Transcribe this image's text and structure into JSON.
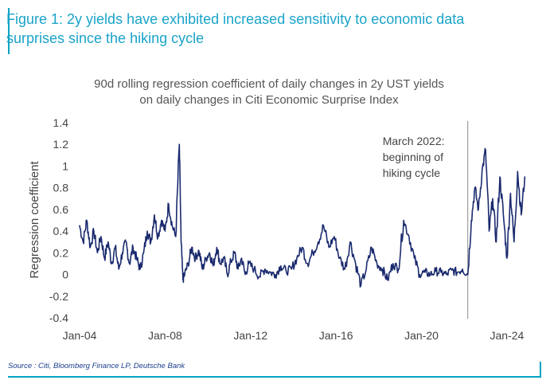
{
  "figure": {
    "title": "Figure 1: 2y yields have exhibited increased sensitivity to economic data surprises since the hiking cycle",
    "source": "Source : Citi, Bloomberg Finance LP, Deutsche Bank"
  },
  "colors": {
    "accent": "#1aa3c9",
    "series_line": "#1a2a6e",
    "source_text": "#1a3c8c"
  },
  "chart_data": {
    "type": "line",
    "title": "90d rolling regression coefficient of daily changes in 2y UST yields on daily changes in Citi Economic Surprise Index",
    "title_lines": [
      "90d rolling regression coefficient of daily changes in 2y UST yields",
      "on daily changes in Citi Economic Surprise Index"
    ],
    "xlabel": "",
    "ylabel": "Regression coefficient",
    "xlim": [
      "2004-01",
      "2025-02"
    ],
    "ylim": [
      -0.4,
      1.4
    ],
    "y_ticks": [
      "1.4",
      "1.2",
      "1",
      "0.8",
      "0.6",
      "0.4",
      "0.2",
      "0",
      "-0.2",
      "-0.4"
    ],
    "x_ticks": [
      "Jan-04",
      "Jan-08",
      "Jan-12",
      "Jan-16",
      "Jan-20",
      "Jan-24"
    ],
    "grid": false,
    "annotation": {
      "lines": [
        "March 2022:",
        "beginning of",
        "hiking cycle"
      ],
      "date": "2022-03"
    },
    "series": [
      {
        "x": [
          "2004-01",
          "2004-03",
          "2004-05",
          "2004-07",
          "2004-09",
          "2004-11",
          "2005-01",
          "2005-03",
          "2005-05",
          "2005-07",
          "2005-09",
          "2005-11",
          "2006-01",
          "2006-03",
          "2006-05",
          "2006-07",
          "2006-09",
          "2006-11",
          "2007-01",
          "2007-03",
          "2007-05",
          "2007-07",
          "2007-09",
          "2007-11",
          "2008-01",
          "2008-03",
          "2008-05",
          "2008-07",
          "2008-09",
          "2008-10",
          "2008-11",
          "2008-12",
          "2009-02",
          "2009-04",
          "2009-06",
          "2009-08",
          "2009-10",
          "2009-12",
          "2010-02",
          "2010-04",
          "2010-06",
          "2010-08",
          "2010-10",
          "2010-12",
          "2011-02",
          "2011-04",
          "2011-06",
          "2011-08",
          "2011-10",
          "2011-12",
          "2012-03",
          "2012-06",
          "2012-09",
          "2012-12",
          "2013-03",
          "2013-06",
          "2013-09",
          "2013-12",
          "2014-03",
          "2014-06",
          "2014-09",
          "2014-12",
          "2015-03",
          "2015-06",
          "2015-09",
          "2015-12",
          "2016-03",
          "2016-06",
          "2016-09",
          "2016-12",
          "2017-03",
          "2017-06",
          "2017-09",
          "2017-12",
          "2018-03",
          "2018-06",
          "2018-09",
          "2018-12",
          "2019-03",
          "2019-06",
          "2019-09",
          "2019-12",
          "2020-03",
          "2020-06",
          "2020-09",
          "2020-12",
          "2021-03",
          "2021-06",
          "2021-09",
          "2021-12",
          "2022-03",
          "2022-05",
          "2022-07",
          "2022-09",
          "2022-11",
          "2023-01",
          "2023-03",
          "2023-05",
          "2023-07",
          "2023-09",
          "2023-11",
          "2024-01",
          "2024-03",
          "2024-05",
          "2024-07",
          "2024-09",
          "2024-11"
        ],
        "values": [
          0.45,
          0.3,
          0.5,
          0.25,
          0.4,
          0.2,
          0.35,
          0.15,
          0.3,
          0.1,
          0.25,
          0.05,
          0.2,
          0.3,
          0.1,
          0.25,
          0.15,
          0.05,
          0.2,
          0.4,
          0.3,
          0.55,
          0.35,
          0.5,
          0.4,
          0.65,
          0.45,
          0.35,
          1.2,
          0.3,
          -0.05,
          0.0,
          0.1,
          0.25,
          0.15,
          0.22,
          0.05,
          0.15,
          0.2,
          0.08,
          0.25,
          0.1,
          0.15,
          0.0,
          0.12,
          0.2,
          0.05,
          0.15,
          0.0,
          0.1,
          0.05,
          -0.02,
          0.05,
          0.02,
          0.0,
          0.08,
          0.03,
          0.05,
          0.15,
          0.25,
          0.1,
          0.2,
          0.3,
          0.45,
          0.25,
          0.35,
          0.15,
          0.05,
          0.3,
          0.1,
          -0.1,
          0.05,
          0.25,
          0.1,
          0.05,
          -0.05,
          0.1,
          0.05,
          0.5,
          0.35,
          0.15,
          0.0,
          0.02,
          0.0,
          0.03,
          0.02,
          0.0,
          0.04,
          0.02,
          0.05,
          0.0,
          0.5,
          0.8,
          0.6,
          0.95,
          1.15,
          0.4,
          0.7,
          0.3,
          0.9,
          0.55,
          0.15,
          0.75,
          0.3,
          0.95,
          0.55,
          0.9
        ]
      }
    ]
  }
}
